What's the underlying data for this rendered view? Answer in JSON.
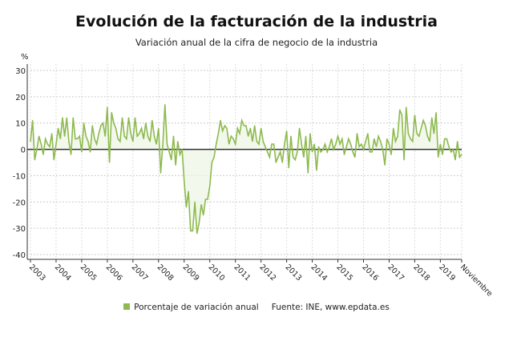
{
  "title": "Evolución de la facturación de la industria",
  "subtitle": "Variación anual de la cifra de negocio de la industria",
  "colors": {
    "line": "#8dba4f",
    "fill": "#eef5e4",
    "zero": "#333333"
  },
  "legend": {
    "label": "Porcentaje de variación anual",
    "source": "Fuente: INE, www.epdata.es"
  },
  "chart_data": {
    "type": "line",
    "title": "Evolución de la facturación de la industria",
    "ylabel": "%",
    "ylim": [
      -40,
      30
    ],
    "yticks": [
      30,
      20,
      10,
      0,
      -10,
      -20,
      -30,
      -40
    ],
    "xticks": [
      "2003",
      "2004",
      "2005",
      "2006",
      "2007",
      "2008",
      "2009",
      "2010",
      "2011",
      "2012",
      "2013",
      "2014",
      "2015",
      "2016",
      "2017",
      "2018",
      "2019",
      "Noviembre"
    ],
    "grid": true,
    "frequency": "monthly",
    "start": "2003-01",
    "end": "2019-11",
    "series": [
      {
        "name": "Porcentaje de variación anual",
        "values": [
          3,
          11,
          -4,
          0,
          5,
          2,
          -2,
          4,
          2,
          1,
          6,
          -4,
          2,
          8,
          4,
          12,
          5,
          12,
          3,
          -2,
          12,
          4,
          4,
          5,
          -1,
          10,
          5,
          3,
          -1,
          9,
          4,
          2,
          6,
          9,
          10,
          5,
          16,
          -5,
          14,
          10,
          8,
          4,
          3,
          12,
          5,
          4,
          12,
          6,
          3,
          12,
          5,
          6,
          8,
          4,
          10,
          5,
          3,
          11,
          5,
          2,
          8,
          -9,
          2,
          17,
          2,
          -1,
          -4,
          5,
          -6,
          3,
          -2,
          0,
          -12,
          -22,
          -16,
          -31,
          -31,
          -20,
          -32,
          -28,
          -21,
          -25,
          -19,
          -19,
          -14,
          -5,
          -3,
          2,
          6,
          11,
          7,
          9,
          8,
          2,
          5,
          4,
          2,
          8,
          6,
          11,
          9,
          9,
          5,
          8,
          3,
          9,
          3,
          2,
          8,
          3,
          1,
          -1,
          -3,
          2,
          2,
          -5,
          -3,
          -1,
          -5,
          2,
          7,
          -7,
          5,
          -3,
          -4,
          -1,
          8,
          2,
          -3,
          5,
          -9,
          6,
          -1,
          2,
          -8,
          1,
          -1,
          0,
          2,
          -1,
          1,
          4,
          0,
          2,
          5,
          2,
          4,
          -2,
          1,
          4,
          2,
          -1,
          -3,
          6,
          1,
          2,
          0,
          3,
          6,
          -1,
          -1,
          4,
          1,
          5,
          3,
          0,
          -6,
          4,
          2,
          -2,
          8,
          3,
          5,
          15,
          13,
          -4,
          16,
          6,
          4,
          3,
          13,
          6,
          5,
          8,
          11,
          9,
          5,
          3,
          12,
          6,
          14,
          -3,
          2,
          -2,
          4,
          4,
          1,
          -1,
          0,
          -4,
          3,
          -3,
          -2
        ]
      }
    ]
  }
}
